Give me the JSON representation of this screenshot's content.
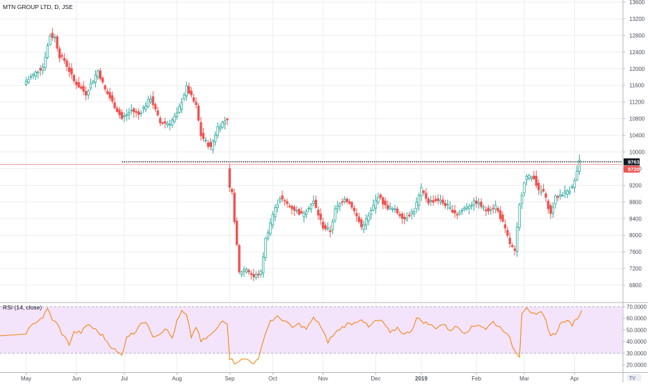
{
  "chart_data": [
    {
      "type": "candlestick",
      "title": "MTN GROUP LTD, D, JSE",
      "ylim": [
        6600,
        13600
      ],
      "y_ticks": [
        6800,
        7200,
        7600,
        8000,
        8400,
        8800,
        9200,
        9600,
        10000,
        10400,
        10800,
        11200,
        11600,
        12000,
        12400,
        12800,
        13200,
        13600
      ],
      "x_ticks": [
        {
          "label": "May",
          "index": 0
        },
        {
          "label": "Jun",
          "index": 21
        },
        {
          "label": "Jul",
          "index": 41
        },
        {
          "label": "Aug",
          "index": 63
        },
        {
          "label": "Sep",
          "index": 85
        },
        {
          "label": "Oct",
          "index": 103
        },
        {
          "label": "Nov",
          "index": 124
        },
        {
          "label": "Dec",
          "index": 146
        },
        {
          "label": "2019",
          "index": 165
        },
        {
          "label": "Feb",
          "index": 188
        },
        {
          "label": "Mar",
          "index": 208
        },
        {
          "label": "Apr",
          "index": 229
        }
      ],
      "price_labels": [
        {
          "value": 9763,
          "label": "9763",
          "color": "#131722"
        },
        {
          "value": 9720,
          "label": "9720",
          "color": "#ef5350"
        }
      ],
      "horizontal_lines": [
        {
          "value": 9763,
          "style": "dotted",
          "color": "#131722",
          "from_index": 40
        },
        {
          "value": 9700,
          "style": "solid",
          "color": "#f2a3a1",
          "from_index": -12
        }
      ],
      "colors": {
        "up": "#26a69a",
        "down": "#ef5350"
      },
      "close_anchors": [
        [
          0,
          11700
        ],
        [
          7,
          12050
        ],
        [
          10,
          12800
        ],
        [
          12,
          12750
        ],
        [
          14,
          12300
        ],
        [
          16,
          12200
        ],
        [
          20,
          11700
        ],
        [
          25,
          11400
        ],
        [
          30,
          11950
        ],
        [
          33,
          11500
        ],
        [
          40,
          10800
        ],
        [
          44,
          11000
        ],
        [
          47,
          10900
        ],
        [
          52,
          11300
        ],
        [
          56,
          10700
        ],
        [
          60,
          10700
        ],
        [
          63,
          10900
        ],
        [
          67,
          11550
        ],
        [
          71,
          11100
        ],
        [
          73,
          10400
        ],
        [
          77,
          10100
        ],
        [
          80,
          10600
        ],
        [
          84,
          10800
        ],
        [
          85,
          9100
        ],
        [
          86,
          9000
        ],
        [
          89,
          7100
        ],
        [
          92,
          7200
        ],
        [
          95,
          7000
        ],
        [
          98,
          7100
        ],
        [
          100,
          7900
        ],
        [
          103,
          8500
        ],
        [
          106,
          8900
        ],
        [
          110,
          8700
        ],
        [
          115,
          8500
        ],
        [
          120,
          8800
        ],
        [
          124,
          8200
        ],
        [
          127,
          8100
        ],
        [
          129,
          8600
        ],
        [
          133,
          8900
        ],
        [
          136,
          8700
        ],
        [
          140,
          8200
        ],
        [
          143,
          8450
        ],
        [
          147,
          8950
        ],
        [
          150,
          8700
        ],
        [
          154,
          8600
        ],
        [
          158,
          8400
        ],
        [
          162,
          8600
        ],
        [
          165,
          9100
        ],
        [
          168,
          8800
        ],
        [
          172,
          8850
        ],
        [
          176,
          8700
        ],
        [
          180,
          8500
        ],
        [
          184,
          8700
        ],
        [
          188,
          8800
        ],
        [
          192,
          8600
        ],
        [
          196,
          8700
        ],
        [
          199,
          8300
        ],
        [
          202,
          7800
        ],
        [
          204,
          7600
        ],
        [
          206,
          8700
        ],
        [
          208,
          9300
        ],
        [
          209,
          9400
        ],
        [
          212,
          9400
        ],
        [
          214,
          9050
        ],
        [
          216,
          9050
        ],
        [
          219,
          8500
        ],
        [
          221,
          8900
        ],
        [
          224,
          9000
        ],
        [
          227,
          9100
        ],
        [
          229,
          9300
        ],
        [
          231,
          9763
        ]
      ],
      "last_index": 231
    },
    {
      "type": "line",
      "title": "RSI (14, close)",
      "ylim": [
        18,
        72
      ],
      "y_ticks": [
        {
          "value": 70,
          "label": "70.0000"
        },
        {
          "value": 60,
          "label": "60.0000"
        },
        {
          "value": 50,
          "label": "50.0000"
        },
        {
          "value": 40,
          "label": "40.0000"
        },
        {
          "value": 30,
          "label": "30.0000"
        },
        {
          "value": 20,
          "label": "20.0000"
        }
      ],
      "band": [
        30,
        70
      ],
      "colors": {
        "line": "#f57c00",
        "band": "#f3e4fb",
        "band_border": "#a9a9b3"
      },
      "rsi_anchors": [
        [
          0,
          48
        ],
        [
          4,
          57
        ],
        [
          7,
          61
        ],
        [
          9,
          68
        ],
        [
          11,
          59
        ],
        [
          13,
          55
        ],
        [
          15,
          47
        ],
        [
          18,
          38
        ],
        [
          20,
          48
        ],
        [
          23,
          48
        ],
        [
          26,
          55
        ],
        [
          29,
          50
        ],
        [
          32,
          45
        ],
        [
          35,
          37
        ],
        [
          38,
          31
        ],
        [
          40,
          28
        ],
        [
          42,
          45
        ],
        [
          45,
          47
        ],
        [
          48,
          57
        ],
        [
          51,
          54
        ],
        [
          53,
          45
        ],
        [
          56,
          47
        ],
        [
          58,
          52
        ],
        [
          61,
          43
        ],
        [
          63,
          57
        ],
        [
          65,
          66
        ],
        [
          67,
          62
        ],
        [
          69,
          44
        ],
        [
          71,
          53
        ],
        [
          73,
          40
        ],
        [
          76,
          44
        ],
        [
          79,
          49
        ],
        [
          82,
          59
        ],
        [
          84,
          56
        ],
        [
          85,
          26
        ],
        [
          87,
          22
        ],
        [
          89,
          24
        ],
        [
          92,
          25
        ],
        [
          95,
          22
        ],
        [
          97,
          24
        ],
        [
          99,
          42
        ],
        [
          102,
          58
        ],
        [
          105,
          61
        ],
        [
          108,
          58
        ],
        [
          111,
          52
        ],
        [
          114,
          55
        ],
        [
          117,
          51
        ],
        [
          120,
          60
        ],
        [
          122,
          57
        ],
        [
          124,
          48
        ],
        [
          126,
          40
        ],
        [
          128,
          45
        ],
        [
          131,
          51
        ],
        [
          134,
          55
        ],
        [
          137,
          56
        ],
        [
          140,
          60
        ],
        [
          143,
          52
        ],
        [
          146,
          58
        ],
        [
          149,
          57
        ],
        [
          152,
          47
        ],
        [
          155,
          52
        ],
        [
          158,
          46
        ],
        [
          161,
          50
        ],
        [
          163,
          60
        ],
        [
          165,
          58
        ],
        [
          168,
          55
        ],
        [
          171,
          52
        ],
        [
          174,
          55
        ],
        [
          177,
          50
        ],
        [
          180,
          53
        ],
        [
          183,
          48
        ],
        [
          186,
          52
        ],
        [
          189,
          55
        ],
        [
          192,
          51
        ],
        [
          195,
          57
        ],
        [
          198,
          52
        ],
        [
          200,
          49
        ],
        [
          202,
          42
        ],
        [
          204,
          32
        ],
        [
          206,
          28
        ],
        [
          207,
          65
        ],
        [
          209,
          70
        ],
        [
          211,
          65
        ],
        [
          213,
          62
        ],
        [
          215,
          65
        ],
        [
          217,
          58
        ],
        [
          219,
          45
        ],
        [
          221,
          47
        ],
        [
          223,
          55
        ],
        [
          225,
          58
        ],
        [
          228,
          55
        ],
        [
          230,
          60
        ],
        [
          232,
          66
        ]
      ],
      "last_index": 232
    }
  ],
  "watermark": {
    "label": "TradingView"
  }
}
